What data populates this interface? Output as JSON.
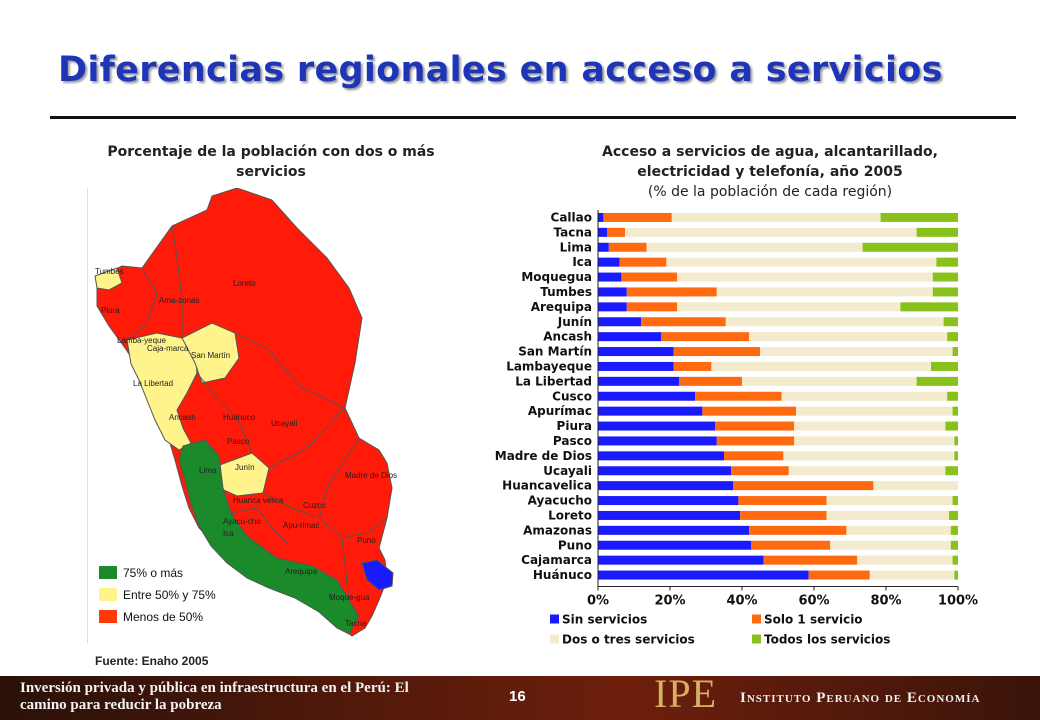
{
  "page": {
    "title": "Diferencias regionales en acceso a servicios",
    "source": "Fuente: Enaho 2005",
    "footer_text": "Inversión privada y pública en infraestructura en el Perú: El camino para reducir la pobreza",
    "page_number": "16",
    "logo": "IPE",
    "logo_name": "Instituto Peruano de Economía"
  },
  "map": {
    "title": "Porcentaje de la población con dos o más servicios",
    "legend": [
      {
        "label": "75% o más",
        "color": "#1a8a2a"
      },
      {
        "label": "Entre 50% y 75%",
        "color": "#fff38c"
      },
      {
        "label": "Menos de 50%",
        "color": "#ff1a0a"
      }
    ],
    "labels": [
      "Tumbes",
      "Piura",
      "Ama-zonas",
      "Loreto",
      "Lamba-yeque",
      "Caja-marca",
      "San Martín",
      "La Libertad",
      "Ancash",
      "Huánuco",
      "Ucayali",
      "Pasco",
      "Lima",
      "Junín",
      "Huanca velica",
      "Ayacu-cho",
      "Apu-rimac",
      "Cuzco",
      "Madre de Dios",
      "Ica",
      "Arequipa",
      "Puno",
      "Moque-gua",
      "Tacna"
    ]
  },
  "chart_data": {
    "type": "bar",
    "orientation": "horizontal",
    "stacked": "percent",
    "title": "Acceso a servicios de agua, alcantarillado, electricidad y telefonía, año 2005",
    "subtitle": "(% de la población de cada región)",
    "xlabel": "",
    "ylabel": "",
    "xlim": [
      0,
      100
    ],
    "x_ticks": [
      "0%",
      "20%",
      "40%",
      "60%",
      "80%",
      "100%"
    ],
    "grid": false,
    "legend_position": "bottom",
    "categories": [
      "Callao",
      "Tacna",
      "Lima",
      "Ica",
      "Moquegua",
      "Tumbes",
      "Arequipa",
      "Junín",
      "Ancash",
      "San Martín",
      "Lambayeque",
      "La Libertad",
      "Cusco",
      "Apurímac",
      "Piura",
      "Pasco",
      "Madre de Dios",
      "Ucayali",
      "Huancavelica",
      "Ayacucho",
      "Loreto",
      "Amazonas",
      "Puno",
      "Cajamarca",
      "Huánuco"
    ],
    "series": [
      {
        "name": "Sin servicios",
        "color": "#1a1aff",
        "values": [
          1.5,
          2.5,
          3,
          6,
          6.5,
          8,
          8,
          12,
          17.5,
          21,
          21,
          22.5,
          27,
          29,
          32.5,
          33,
          35,
          37,
          37.5,
          39,
          39.5,
          42,
          42.5,
          46,
          58.5
        ]
      },
      {
        "name": "Solo 1 servicio",
        "color": "#ff6a10",
        "values": [
          19,
          5,
          10.5,
          13,
          15.5,
          25,
          14,
          23.5,
          24.5,
          24,
          10.5,
          17.5,
          24,
          26,
          22,
          21.5,
          16.5,
          16,
          39,
          24.5,
          24,
          27,
          22,
          26,
          17
        ]
      },
      {
        "name": "Dos o tres servicios",
        "color": "#f3ebcd",
        "values": [
          58,
          81,
          60,
          75,
          71,
          60,
          62,
          60.5,
          55,
          53.5,
          61,
          48.5,
          46,
          43.5,
          42,
          44.5,
          47.5,
          43.5,
          23.5,
          35,
          34,
          29,
          33.5,
          26.5,
          23.5
        ]
      },
      {
        "name": "Todos los servicios",
        "color": "#88c11a",
        "values": [
          21.5,
          11.5,
          26.5,
          6,
          7,
          7,
          16,
          4,
          3,
          1.5,
          7.5,
          11.5,
          3,
          1.5,
          3.5,
          1,
          1,
          3.5,
          0,
          1.5,
          2.5,
          2,
          2,
          1.5,
          1
        ]
      }
    ]
  }
}
